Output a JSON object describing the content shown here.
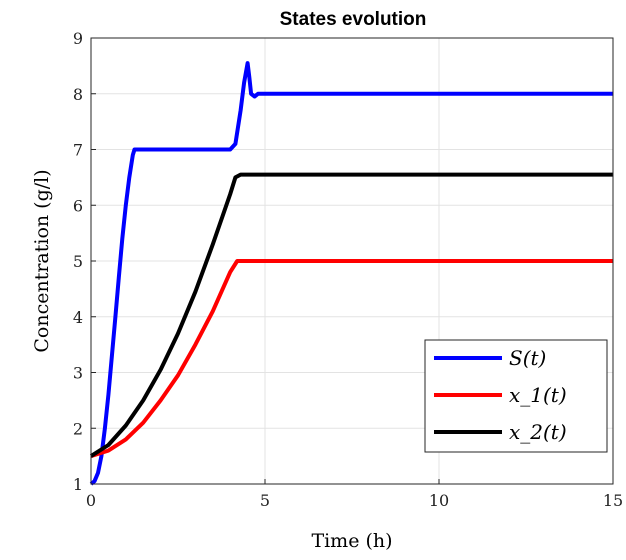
{
  "chart_data": {
    "type": "line",
    "title": "States evolution",
    "xlabel": "Time (h)",
    "ylabel": "Concentration (g/l)",
    "xlim": [
      0,
      15
    ],
    "ylim": [
      1,
      9
    ],
    "xticks": [
      0,
      5,
      10,
      15
    ],
    "yticks": [
      1,
      2,
      3,
      4,
      5,
      6,
      7,
      8,
      9
    ],
    "grid": true,
    "legend_position": "bottom-right",
    "series": [
      {
        "name": "S(t)",
        "color": "#0000ff",
        "x": [
          0,
          0.1,
          0.2,
          0.3,
          0.4,
          0.5,
          0.6,
          0.7,
          0.8,
          0.9,
          1.0,
          1.1,
          1.2,
          1.25,
          2,
          3,
          4,
          4.15,
          4.3,
          4.4,
          4.5,
          4.55,
          4.6,
          4.7,
          4.8,
          5,
          6,
          7,
          8,
          9,
          10,
          11,
          12,
          13,
          14,
          15
        ],
        "y": [
          1.0,
          1.05,
          1.2,
          1.5,
          2.0,
          2.6,
          3.3,
          4.0,
          4.7,
          5.4,
          6.0,
          6.5,
          6.9,
          7.0,
          7.0,
          7.0,
          7.0,
          7.1,
          7.7,
          8.2,
          8.55,
          8.3,
          8.0,
          7.95,
          8.0,
          8.0,
          8.0,
          8.0,
          8.0,
          8.0,
          8.0,
          8.0,
          8.0,
          8.0,
          8.0,
          8.0
        ]
      },
      {
        "name": "x_1(t)",
        "color": "#ff0000",
        "x": [
          0,
          0.5,
          1,
          1.5,
          2,
          2.5,
          3,
          3.5,
          4,
          4.2,
          5,
          10,
          15
        ],
        "y": [
          1.5,
          1.6,
          1.8,
          2.1,
          2.5,
          2.95,
          3.5,
          4.1,
          4.8,
          5.0,
          5.0,
          5.0,
          5.0
        ],
        "label_sub": "1"
      },
      {
        "name": "x_2(t)",
        "color": "#000000",
        "x": [
          0,
          0.5,
          1,
          1.5,
          2,
          2.5,
          3,
          3.5,
          4,
          4.15,
          4.3,
          5,
          10,
          15
        ],
        "y": [
          1.5,
          1.7,
          2.05,
          2.5,
          3.05,
          3.7,
          4.45,
          5.3,
          6.2,
          6.5,
          6.55,
          6.55,
          6.55,
          6.55
        ],
        "label_sub": "2"
      }
    ]
  }
}
